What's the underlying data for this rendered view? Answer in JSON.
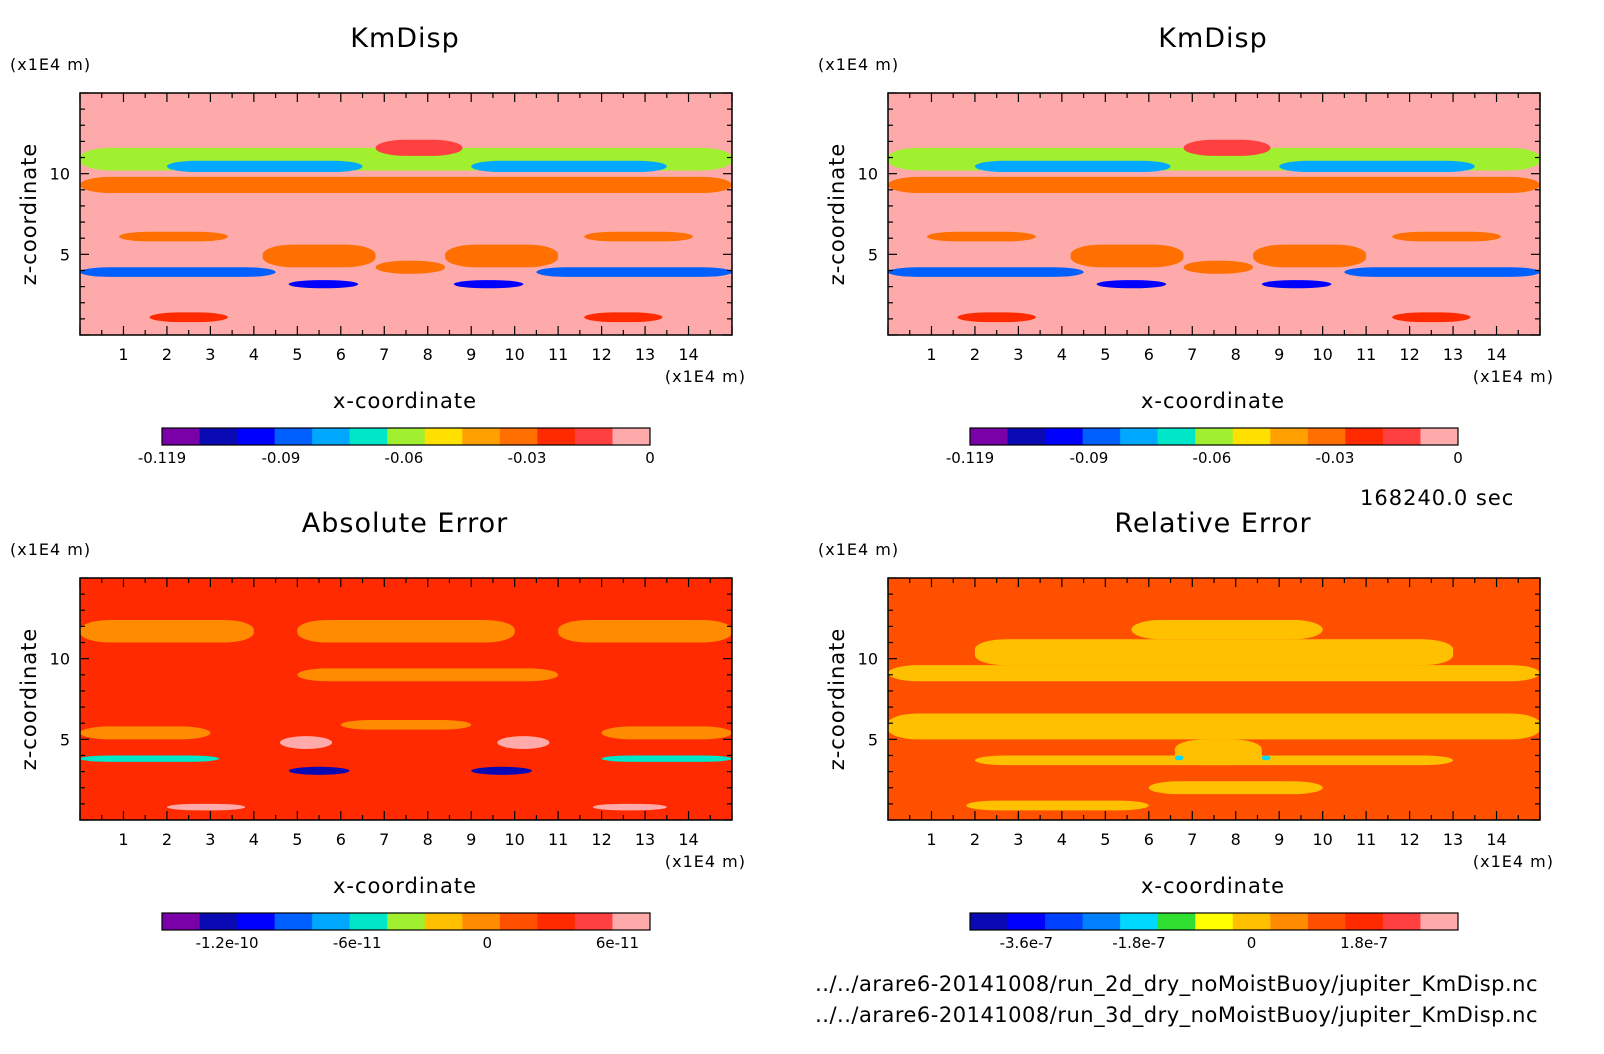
{
  "time_stamp": "168240.0 sec",
  "footer": {
    "file1": "../../arare6-20141008/run_2d_dry_noMoistBuoy/jupiter_KmDisp.nc",
    "file2": "../../arare6-20141008/run_3d_dry_noMoistBuoy/jupiter_KmDisp.nc"
  },
  "chart_data": [
    {
      "type": "heatmap",
      "title": "KmDisp",
      "xlabel": "x-coordinate",
      "ylabel": "z-coordinate",
      "x_unit": "(x1E4 m)",
      "y_unit": "(x1E4 m)",
      "xlim": [
        0,
        15
      ],
      "ylim": [
        0,
        15
      ],
      "x_ticks": [
        1,
        2,
        3,
        4,
        5,
        6,
        7,
        8,
        9,
        10,
        11,
        12,
        13,
        14
      ],
      "y_ticks": [
        5,
        10
      ],
      "background_value": 0,
      "colorbar": {
        "colors": [
          "#7a00a8",
          "#0a0ab4",
          "#0000ff",
          "#0060ff",
          "#00a8ff",
          "#00e6c8",
          "#a0f030",
          "#ffe000",
          "#ffa000",
          "#ff7000",
          "#ff2a00",
          "#ff4040",
          "#ffaaaa"
        ],
        "tick_labels": [
          "-0.119",
          "-0.09",
          "-0.06",
          "-0.03",
          "0"
        ],
        "tick_values": [
          -0.119,
          -0.09,
          -0.06,
          -0.03,
          0
        ],
        "min": -0.119,
        "max": 0
      },
      "features": [
        {
          "value": -0.03,
          "x": [
            0.0,
            15.0
          ],
          "z": [
            8.8,
            9.8
          ]
        },
        {
          "value": -0.06,
          "x": [
            0.0,
            15.0
          ],
          "z": [
            10.2,
            11.6
          ]
        },
        {
          "value": -0.08,
          "x": [
            2.0,
            6.5
          ],
          "z": [
            10.1,
            10.8
          ]
        },
        {
          "value": -0.08,
          "x": [
            9.0,
            13.5
          ],
          "z": [
            10.1,
            10.8
          ]
        },
        {
          "value": -0.01,
          "x": [
            6.8,
            8.8
          ],
          "z": [
            11.1,
            12.1
          ]
        },
        {
          "value": -0.09,
          "x": [
            0.0,
            4.5
          ],
          "z": [
            3.6,
            4.2
          ]
        },
        {
          "value": -0.09,
          "x": [
            10.5,
            15.0
          ],
          "z": [
            3.6,
            4.2
          ]
        },
        {
          "value": -0.03,
          "x": [
            4.2,
            6.8
          ],
          "z": [
            4.2,
            5.6
          ]
        },
        {
          "value": -0.03,
          "x": [
            8.4,
            11.0
          ],
          "z": [
            4.2,
            5.6
          ]
        },
        {
          "value": -0.03,
          "x": [
            6.8,
            8.4
          ],
          "z": [
            3.8,
            4.6
          ]
        },
        {
          "value": -0.1,
          "x": [
            4.8,
            6.4
          ],
          "z": [
            2.9,
            3.4
          ]
        },
        {
          "value": -0.1,
          "x": [
            8.6,
            10.2
          ],
          "z": [
            2.9,
            3.4
          ]
        },
        {
          "value": -0.03,
          "x": [
            0.9,
            3.4
          ],
          "z": [
            5.8,
            6.4
          ]
        },
        {
          "value": -0.03,
          "x": [
            11.6,
            14.1
          ],
          "z": [
            5.8,
            6.4
          ]
        },
        {
          "value": -0.02,
          "x": [
            1.6,
            3.4
          ],
          "z": [
            0.8,
            1.4
          ]
        },
        {
          "value": -0.02,
          "x": [
            11.6,
            13.4
          ],
          "z": [
            0.8,
            1.4
          ]
        }
      ]
    },
    {
      "type": "heatmap",
      "title": "KmDisp",
      "xlabel": "x-coordinate",
      "ylabel": "z-coordinate",
      "x_unit": "(x1E4 m)",
      "y_unit": "(x1E4 m)",
      "xlim": [
        0,
        15
      ],
      "ylim": [
        0,
        15
      ],
      "x_ticks": [
        1,
        2,
        3,
        4,
        5,
        6,
        7,
        8,
        9,
        10,
        11,
        12,
        13,
        14
      ],
      "y_ticks": [
        5,
        10
      ],
      "background_value": 0,
      "colorbar": {
        "colors": [
          "#7a00a8",
          "#0a0ab4",
          "#0000ff",
          "#0060ff",
          "#00a8ff",
          "#00e6c8",
          "#a0f030",
          "#ffe000",
          "#ffa000",
          "#ff7000",
          "#ff2a00",
          "#ff4040",
          "#ffaaaa"
        ],
        "tick_labels": [
          "-0.119",
          "-0.09",
          "-0.06",
          "-0.03",
          "0"
        ],
        "tick_values": [
          -0.119,
          -0.09,
          -0.06,
          -0.03,
          0
        ],
        "min": -0.119,
        "max": 0
      },
      "features": [
        {
          "value": -0.03,
          "x": [
            0.0,
            15.0
          ],
          "z": [
            8.8,
            9.8
          ]
        },
        {
          "value": -0.06,
          "x": [
            0.0,
            15.0
          ],
          "z": [
            10.2,
            11.6
          ]
        },
        {
          "value": -0.08,
          "x": [
            2.0,
            6.5
          ],
          "z": [
            10.1,
            10.8
          ]
        },
        {
          "value": -0.08,
          "x": [
            9.0,
            13.5
          ],
          "z": [
            10.1,
            10.8
          ]
        },
        {
          "value": -0.01,
          "x": [
            6.8,
            8.8
          ],
          "z": [
            11.1,
            12.1
          ]
        },
        {
          "value": -0.09,
          "x": [
            0.0,
            4.5
          ],
          "z": [
            3.6,
            4.2
          ]
        },
        {
          "value": -0.09,
          "x": [
            10.5,
            15.0
          ],
          "z": [
            3.6,
            4.2
          ]
        },
        {
          "value": -0.03,
          "x": [
            4.2,
            6.8
          ],
          "z": [
            4.2,
            5.6
          ]
        },
        {
          "value": -0.03,
          "x": [
            8.4,
            11.0
          ],
          "z": [
            4.2,
            5.6
          ]
        },
        {
          "value": -0.03,
          "x": [
            6.8,
            8.4
          ],
          "z": [
            3.8,
            4.6
          ]
        },
        {
          "value": -0.1,
          "x": [
            4.8,
            6.4
          ],
          "z": [
            2.9,
            3.4
          ]
        },
        {
          "value": -0.1,
          "x": [
            8.6,
            10.2
          ],
          "z": [
            2.9,
            3.4
          ]
        },
        {
          "value": -0.03,
          "x": [
            0.9,
            3.4
          ],
          "z": [
            5.8,
            6.4
          ]
        },
        {
          "value": -0.03,
          "x": [
            11.6,
            14.1
          ],
          "z": [
            5.8,
            6.4
          ]
        },
        {
          "value": -0.02,
          "x": [
            1.6,
            3.4
          ],
          "z": [
            0.8,
            1.4
          ]
        },
        {
          "value": -0.02,
          "x": [
            11.6,
            13.4
          ],
          "z": [
            0.8,
            1.4
          ]
        }
      ]
    },
    {
      "type": "heatmap",
      "title": "Absolute Error",
      "xlabel": "x-coordinate",
      "ylabel": "z-coordinate",
      "x_unit": "(x1E4 m)",
      "y_unit": "(x1E4 m)",
      "xlim": [
        0,
        15
      ],
      "ylim": [
        0,
        15
      ],
      "x_ticks": [
        1,
        2,
        3,
        4,
        5,
        6,
        7,
        8,
        9,
        10,
        11,
        12,
        13,
        14
      ],
      "y_ticks": [
        5,
        10
      ],
      "background_value": 3e-11,
      "colorbar": {
        "colors": [
          "#7a00a8",
          "#0a0ab4",
          "#0000ff",
          "#0060ff",
          "#00a8ff",
          "#00e6c8",
          "#a0f030",
          "#ffc000",
          "#ff8c00",
          "#ff5000",
          "#ff2a00",
          "#ff4040",
          "#ffaaaa"
        ],
        "tick_labels": [
          "-1.2e-10",
          "-6e-11",
          "0",
          "6e-11"
        ],
        "tick_values": [
          -1.2e-10,
          -6e-11,
          0,
          6e-11
        ],
        "min": -1.5e-10,
        "max": 7.5e-11
      },
      "features": [
        {
          "value": 0,
          "x": [
            0.0,
            4.0
          ],
          "z": [
            11.0,
            12.4
          ]
        },
        {
          "value": 0,
          "x": [
            5.0,
            10.0
          ],
          "z": [
            11.0,
            12.4
          ]
        },
        {
          "value": 0,
          "x": [
            11.0,
            15.0
          ],
          "z": [
            11.0,
            12.4
          ]
        },
        {
          "value": 0,
          "x": [
            5.0,
            11.0
          ],
          "z": [
            8.6,
            9.4
          ]
        },
        {
          "value": 0,
          "x": [
            0.0,
            3.0
          ],
          "z": [
            5.0,
            5.8
          ]
        },
        {
          "value": 0,
          "x": [
            12.0,
            15.0
          ],
          "z": [
            5.0,
            5.8
          ]
        },
        {
          "value": 0,
          "x": [
            6.0,
            9.0
          ],
          "z": [
            5.6,
            6.2
          ]
        },
        {
          "value": 6e-11,
          "x": [
            4.6,
            5.8
          ],
          "z": [
            4.4,
            5.2
          ]
        },
        {
          "value": 6e-11,
          "x": [
            9.6,
            10.8
          ],
          "z": [
            4.4,
            5.2
          ]
        },
        {
          "value": -6e-11,
          "x": [
            0.0,
            3.2
          ],
          "z": [
            3.6,
            4.0
          ]
        },
        {
          "value": -6e-11,
          "x": [
            12.0,
            15.0
          ],
          "z": [
            3.6,
            4.0
          ]
        },
        {
          "value": -1.2e-10,
          "x": [
            4.8,
            6.2
          ],
          "z": [
            2.8,
            3.3
          ]
        },
        {
          "value": -1.2e-10,
          "x": [
            9.0,
            10.4
          ],
          "z": [
            2.8,
            3.3
          ]
        },
        {
          "value": 6e-11,
          "x": [
            2.0,
            3.8
          ],
          "z": [
            0.6,
            1.0
          ]
        },
        {
          "value": 6e-11,
          "x": [
            11.8,
            13.5
          ],
          "z": [
            0.6,
            1.0
          ]
        }
      ]
    },
    {
      "type": "heatmap",
      "title": "Relative Error",
      "xlabel": "x-coordinate",
      "ylabel": "z-coordinate",
      "x_unit": "(x1E4 m)",
      "y_unit": "(x1E4 m)",
      "xlim": [
        0,
        15
      ],
      "ylim": [
        0,
        15
      ],
      "x_ticks": [
        1,
        2,
        3,
        4,
        5,
        6,
        7,
        8,
        9,
        10,
        11,
        12,
        13,
        14
      ],
      "y_ticks": [
        5,
        10
      ],
      "background_value": 9e-08,
      "colorbar": {
        "colors": [
          "#0a0ab4",
          "#0000ff",
          "#0040ff",
          "#0080ff",
          "#00d8ff",
          "#30e030",
          "#ffff00",
          "#ffc000",
          "#ff8c00",
          "#ff5000",
          "#ff2a00",
          "#ff4040",
          "#ffaaaa"
        ],
        "tick_labels": [
          "-3.6e-7",
          "-1.8e-7",
          "0",
          "1.8e-7"
        ],
        "tick_values": [
          -3.6e-07,
          -1.8e-07,
          0,
          1.8e-07
        ],
        "min": -4.5e-07,
        "max": 3.3e-07
      },
      "features": [
        {
          "value": 0,
          "x": [
            0.0,
            15.0
          ],
          "z": [
            8.6,
            9.6
          ]
        },
        {
          "value": 0,
          "x": [
            2.0,
            13.0
          ],
          "z": [
            9.6,
            11.2
          ]
        },
        {
          "value": 0,
          "x": [
            5.6,
            10.0
          ],
          "z": [
            11.2,
            12.4
          ]
        },
        {
          "value": 0,
          "x": [
            0.0,
            15.0
          ],
          "z": [
            5.0,
            6.6
          ]
        },
        {
          "value": 0,
          "x": [
            6.6,
            8.6
          ],
          "z": [
            3.4,
            5.0
          ]
        },
        {
          "value": 0,
          "x": [
            2.0,
            13.0
          ],
          "z": [
            3.4,
            4.0
          ]
        },
        {
          "value": 0,
          "x": [
            6.0,
            10.0
          ],
          "z": [
            1.6,
            2.4
          ]
        },
        {
          "value": 0,
          "x": [
            1.8,
            6.0
          ],
          "z": [
            0.6,
            1.2
          ]
        },
        {
          "value": -1.8e-07,
          "x": [
            6.6,
            6.8
          ],
          "z": [
            3.7,
            4.0
          ]
        },
        {
          "value": -1.8e-07,
          "x": [
            8.6,
            8.8
          ],
          "z": [
            3.7,
            4.0
          ]
        }
      ]
    }
  ]
}
